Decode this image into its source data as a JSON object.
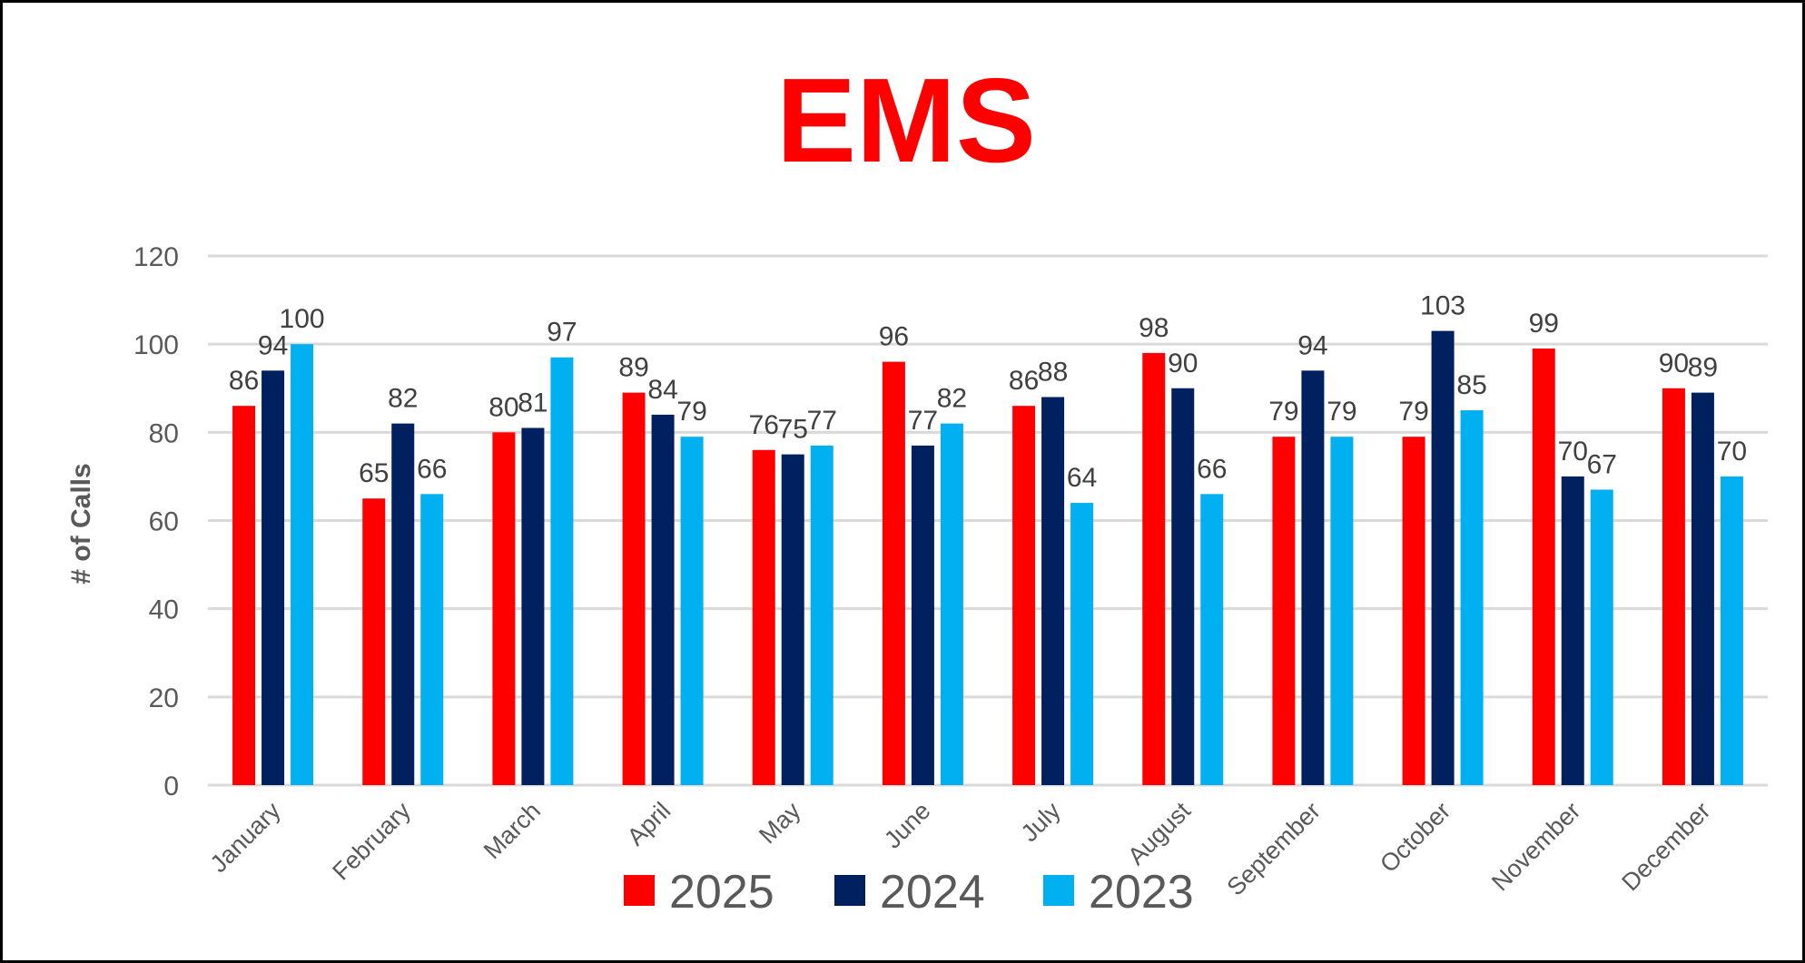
{
  "chart_data": {
    "type": "bar",
    "title": "EMS",
    "xlabel": "",
    "ylabel": "# of Calls",
    "ylim": [
      0,
      120
    ],
    "yticks": [
      0,
      20,
      40,
      60,
      80,
      100,
      120
    ],
    "grid": true,
    "legend_position": "bottom",
    "categories": [
      "January",
      "February",
      "March",
      "April",
      "May",
      "June",
      "July",
      "August",
      "September",
      "October",
      "November",
      "December"
    ],
    "series": [
      {
        "name": "2025",
        "color": "#ff0000",
        "values": [
          86,
          65,
          80,
          89,
          76,
          96,
          86,
          98,
          79,
          79,
          99,
          90
        ]
      },
      {
        "name": "2024",
        "color": "#002060",
        "values": [
          94,
          82,
          81,
          84,
          75,
          77,
          88,
          90,
          94,
          103,
          70,
          89
        ]
      },
      {
        "name": "2023",
        "color": "#00b0f0",
        "values": [
          100,
          66,
          97,
          79,
          77,
          82,
          64,
          66,
          79,
          85,
          67,
          70
        ]
      }
    ]
  }
}
